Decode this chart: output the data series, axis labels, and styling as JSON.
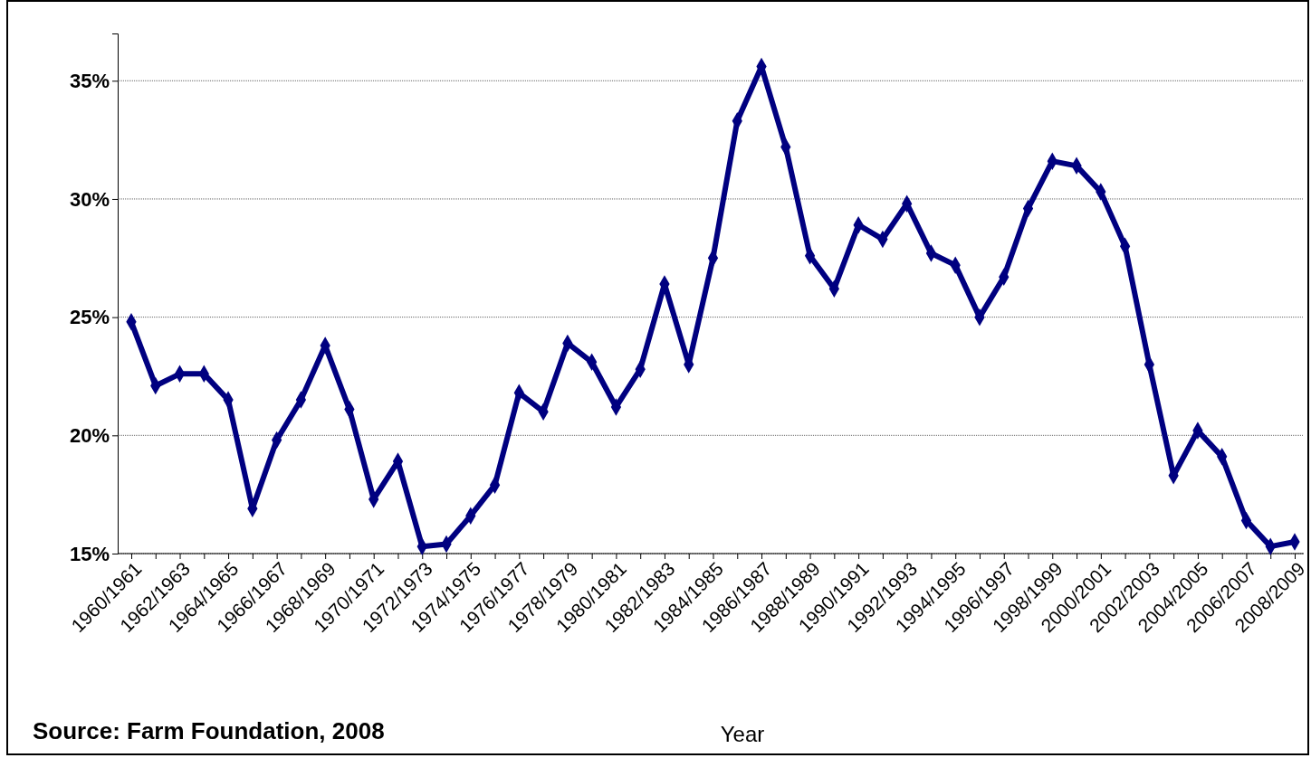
{
  "chart_data": {
    "type": "line",
    "xlabel": "Year",
    "annotations": [
      "Source: Farm Foundation, 2008"
    ],
    "categories": [
      "1960/1961",
      null,
      "1962/1963",
      null,
      "1964/1965",
      null,
      "1966/1967",
      null,
      "1968/1969",
      null,
      "1970/1971",
      null,
      "1972/1973",
      null,
      "1974/1975",
      null,
      "1976/1977",
      null,
      "1978/1979",
      null,
      "1980/1981",
      null,
      "1982/1983",
      null,
      "1984/1985",
      null,
      "1986/1987",
      null,
      "1988/1989",
      null,
      "1990/1991",
      null,
      "1992/1993",
      null,
      "1994/1995",
      null,
      "1996/1997",
      null,
      "1998/1999",
      null,
      "2000/2001",
      null,
      "2002/2003",
      null,
      "2004/2005",
      null,
      "2006/2007",
      null,
      "2008/2009"
    ],
    "series": [
      {
        "color": "#000080",
        "values": [
          24.8,
          22.1,
          22.6,
          22.6,
          21.5,
          16.9,
          19.8,
          21.5,
          23.8,
          21.1,
          17.3,
          18.9,
          15.3,
          15.4,
          16.6,
          17.9,
          21.8,
          21.0,
          23.9,
          23.1,
          21.2,
          22.8,
          26.4,
          23.0,
          27.5,
          33.3,
          35.6,
          32.2,
          27.6,
          26.2,
          28.9,
          28.3,
          29.8,
          27.7,
          27.2,
          25.0,
          26.7,
          29.6,
          31.6,
          31.4,
          30.3,
          28.0,
          23.0,
          18.3,
          20.2,
          19.1,
          16.4,
          15.3,
          15.5
        ]
      }
    ],
    "ylim": [
      15,
      37
    ],
    "yticks": [
      {
        "value": 15,
        "label": "15%"
      },
      {
        "value": 20,
        "label": "20%"
      },
      {
        "value": 25,
        "label": "25%"
      },
      {
        "value": 30,
        "label": "30%"
      },
      {
        "value": 35,
        "label": "35%"
      }
    ],
    "grid": "y",
    "marker": "diamond",
    "line_style": "solid"
  }
}
